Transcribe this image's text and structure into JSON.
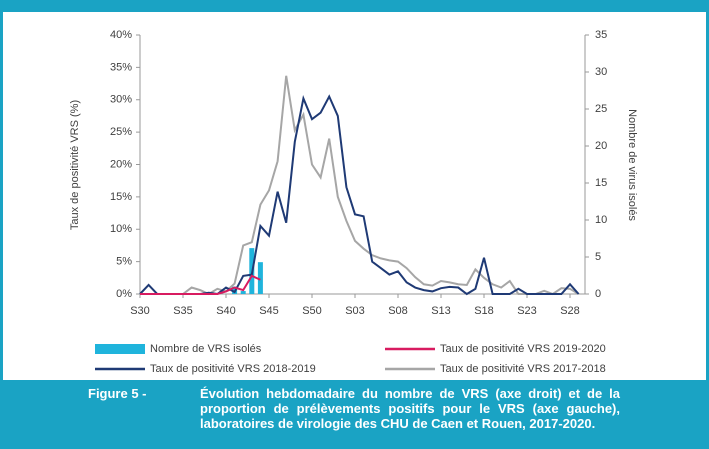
{
  "chart_data": {
    "type": "combo",
    "y_label": "Taux de positivité VRS (%)",
    "y2_label": "Nombre de virus isolés",
    "categories": [
      "S30",
      null,
      null,
      null,
      null,
      "S35",
      null,
      null,
      null,
      null,
      "S40",
      null,
      null,
      null,
      null,
      "S45",
      null,
      null,
      null,
      null,
      "S50",
      null,
      null,
      null,
      null,
      "S03",
      null,
      null,
      null,
      null,
      "S08",
      null,
      null,
      null,
      null,
      "S13",
      null,
      null,
      null,
      null,
      "S18",
      null,
      null,
      null,
      null,
      "S23",
      null,
      null,
      null,
      null,
      "S28",
      null
    ],
    "ylim": [
      0,
      40
    ],
    "yticks": [
      {
        "value": 0,
        "label": "0%"
      },
      {
        "value": 5,
        "label": "5%"
      },
      {
        "value": 10,
        "label": "10%"
      },
      {
        "value": 15,
        "label": "15%"
      },
      {
        "value": 20,
        "label": "20%"
      },
      {
        "value": 25,
        "label": "25%"
      },
      {
        "value": 30,
        "label": "30%"
      },
      {
        "value": 35,
        "label": "35%"
      },
      {
        "value": 40,
        "label": "40%"
      }
    ],
    "y2lim": [
      0,
      35
    ],
    "y2ticks": [
      0,
      5,
      10,
      15,
      20,
      25,
      30,
      35
    ],
    "series": [
      {
        "name": "Nombre de VRS isolés",
        "type": "bar",
        "axis": "y2",
        "color": "#1fb4dc",
        "values": [
          null,
          null,
          null,
          null,
          null,
          null,
          null,
          null,
          null,
          null,
          null,
          1,
          0.4,
          6.2,
          4.3,
          null,
          null,
          null,
          null,
          null,
          null,
          null,
          null,
          null,
          null,
          null,
          null,
          null,
          null,
          null,
          null,
          null,
          null,
          null,
          null,
          null,
          null,
          null,
          null,
          null,
          null,
          null,
          null,
          null,
          null,
          null,
          null,
          null,
          null,
          null,
          null,
          null
        ]
      },
      {
        "name": "Taux de positivité VRS 2019-2020",
        "type": "line",
        "color": "#d81b60",
        "values": [
          0,
          0,
          0,
          0,
          0,
          0,
          0,
          0,
          0,
          0,
          0.4,
          1,
          0.6,
          2.8,
          2.2,
          null,
          null,
          null,
          null,
          null,
          null,
          null,
          null,
          null,
          null,
          null,
          null,
          null,
          null,
          null,
          null,
          null,
          null,
          null,
          null,
          null,
          null,
          null,
          null,
          null,
          null,
          null,
          null,
          null,
          null,
          null,
          null,
          null,
          null,
          null,
          null,
          null
        ]
      },
      {
        "name": "Taux de positivité VRS 2018-2019",
        "type": "line",
        "color": "#1f3a75",
        "values": [
          0,
          1.4,
          0,
          0,
          0,
          0,
          0,
          0,
          0.2,
          0,
          1,
          0.3,
          2.8,
          3,
          10.5,
          9,
          15.8,
          11,
          23.5,
          30.2,
          27,
          28,
          30.5,
          27.5,
          16.5,
          12.3,
          12,
          5,
          4,
          3,
          3.5,
          1.8,
          1,
          0.6,
          0.4,
          0.9,
          1.1,
          1,
          0,
          0.8,
          5.6,
          0,
          0,
          0,
          0.8,
          0,
          0,
          0,
          0,
          0,
          1.5,
          0
        ]
      },
      {
        "name": "Taux de positivité VRS 2017-2018",
        "type": "line",
        "color": "#a6a6a6",
        "values": [
          0,
          0,
          0,
          0,
          0,
          0,
          1,
          0.6,
          0,
          0.8,
          0.4,
          1.6,
          7.5,
          8,
          13.8,
          16,
          20.5,
          33.7,
          25.3,
          27.7,
          20,
          18,
          24,
          15,
          11.3,
          8.2,
          7,
          6,
          5.5,
          5.2,
          5,
          4,
          2.6,
          1.5,
          1.3,
          2,
          1.8,
          1.5,
          1.4,
          3.8,
          2.5,
          1.5,
          1,
          2,
          0,
          0,
          0,
          0.5,
          0,
          0.9,
          0.8,
          0
        ]
      }
    ],
    "caption_label": "Figure 5 -",
    "caption": "Évolution hebdomadaire du nombre de VRS (axe droit) et de la proportion de prélèvements positifs pour le VRS (axe gauche), laboratoires de virologie des CHU de Caen et Rouen, 2017-2020."
  }
}
